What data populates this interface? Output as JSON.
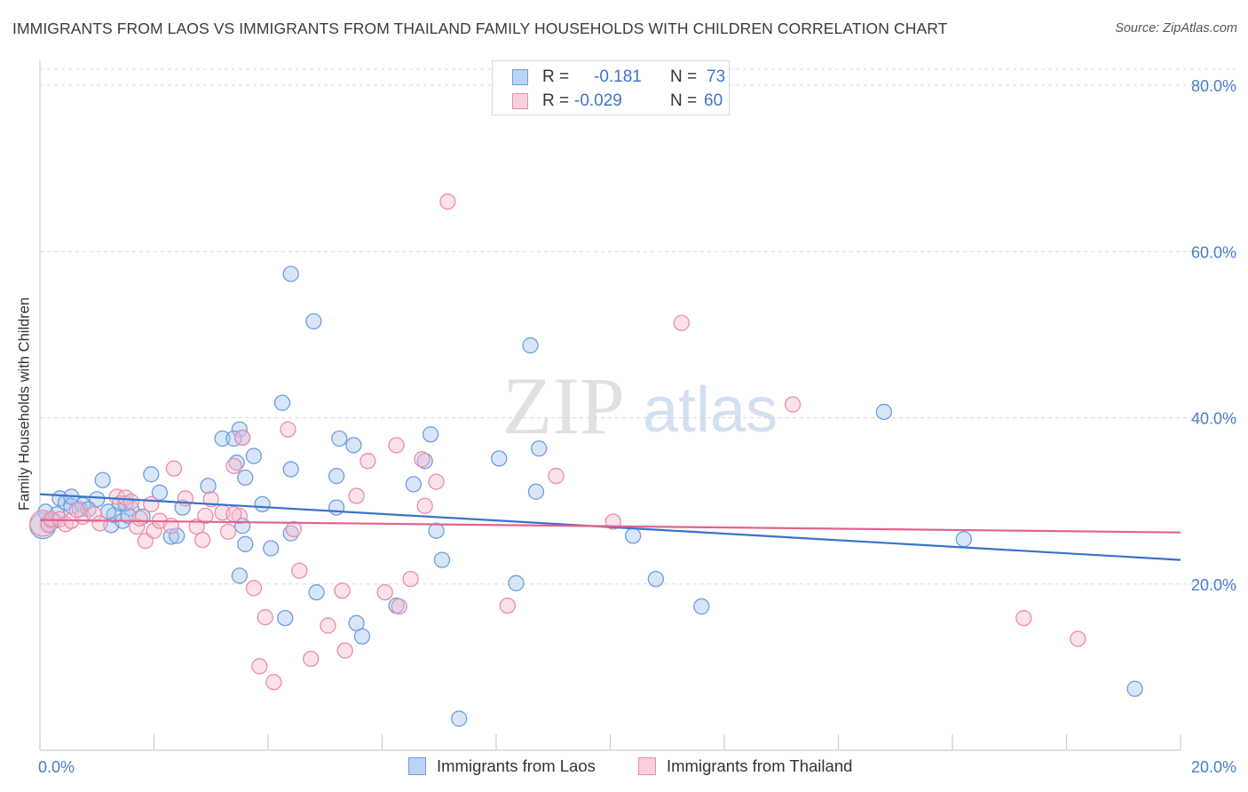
{
  "title": "IMMIGRANTS FROM LAOS VS IMMIGRANTS FROM THAILAND FAMILY HOUSEHOLDS WITH CHILDREN CORRELATION CHART",
  "source": "Source: ZipAtlas.com",
  "watermark": {
    "zip": "ZIP",
    "atlas": "atlas"
  },
  "legend": {
    "rows": [
      {
        "r_label": "R =",
        "r_value": "-0.181",
        "n_label": "N =",
        "n_value": "73"
      },
      {
        "r_label": "R =",
        "r_value": "-0.029",
        "n_label": "N =",
        "n_value": "60"
      }
    ]
  },
  "colors": {
    "laos_fill": "#a9c8ef",
    "laos_stroke": "#6d9ee0",
    "laos_line": "#3a72c9",
    "thai_fill": "#f6bfd1",
    "thai_stroke": "#e98cab",
    "thai_line": "#e0648e",
    "tick_text": "#4a7cc9",
    "grid": "#d9d9d9"
  },
  "chart_data": {
    "type": "scatter",
    "title": "IMMIGRANTS FROM LAOS VS IMMIGRANTS FROM THAILAND FAMILY HOUSEHOLDS WITH CHILDREN CORRELATION CHART",
    "xlabel": "",
    "ylabel": "Family Households with Children",
    "xlim": [
      0,
      20
    ],
    "ylim": [
      0,
      80
    ],
    "x_tick_labels": [
      "0.0%",
      "20.0%"
    ],
    "y_ticks": [
      20,
      40,
      60,
      80
    ],
    "y_tick_labels": [
      "20.0%",
      "40.0%",
      "60.0%",
      "80.0%"
    ],
    "grid": true,
    "legend_position": "top-center",
    "series": [
      {
        "name": "Immigrants from Laos",
        "R": -0.181,
        "N": 73,
        "trend": {
          "x": [
            0,
            20
          ],
          "y": [
            30.8,
            22.9
          ]
        },
        "points": [
          [
            0.05,
            27.0,
            1.7
          ],
          [
            0.1,
            28.7,
            1
          ],
          [
            0.15,
            27.2,
            1
          ],
          [
            0.2,
            27.6,
            1
          ],
          [
            0.25,
            27.6,
            1
          ],
          [
            0.3,
            28.4,
            1
          ],
          [
            0.35,
            30.3,
            1
          ],
          [
            0.45,
            29.8,
            1
          ],
          [
            0.55,
            29.4,
            1
          ],
          [
            0.7,
            29.0,
            1
          ],
          [
            0.75,
            29.5,
            1
          ],
          [
            1.0,
            30.2,
            1
          ],
          [
            1.1,
            32.5,
            1
          ],
          [
            1.25,
            27.1,
            1
          ],
          [
            1.6,
            29.1,
            1
          ],
          [
            1.95,
            33.2,
            1
          ],
          [
            2.1,
            31.0,
            1
          ],
          [
            3.45,
            34.6,
            1
          ],
          [
            3.6,
            32.8,
            1
          ],
          [
            3.75,
            35.4,
            1
          ],
          [
            0.55,
            30.5,
            1
          ],
          [
            1.3,
            28.3,
            1
          ],
          [
            1.45,
            27.6,
            1
          ],
          [
            1.55,
            28.2,
            1
          ],
          [
            2.3,
            25.7,
            1
          ],
          [
            0.85,
            29.0,
            1
          ],
          [
            1.2,
            28.7,
            1
          ],
          [
            1.4,
            29.7,
            1
          ],
          [
            1.5,
            29.7,
            1
          ],
          [
            1.8,
            28.1,
            1
          ],
          [
            2.5,
            29.2,
            1
          ],
          [
            2.95,
            31.8,
            1
          ],
          [
            3.2,
            37.5,
            1
          ],
          [
            3.5,
            38.6,
            1
          ],
          [
            3.55,
            37.6,
            1
          ],
          [
            3.4,
            37.5,
            1
          ],
          [
            3.55,
            27.0,
            1
          ],
          [
            3.6,
            24.8,
            1
          ],
          [
            3.9,
            29.6,
            1
          ],
          [
            4.05,
            24.3,
            1
          ],
          [
            4.4,
            33.8,
            1
          ],
          [
            4.4,
            26.1,
            1
          ],
          [
            4.25,
            41.8,
            1
          ],
          [
            4.4,
            57.3,
            1
          ],
          [
            4.8,
            51.6,
            1
          ],
          [
            4.85,
            19.0,
            1
          ],
          [
            5.2,
            29.2,
            1
          ],
          [
            5.25,
            37.5,
            1
          ],
          [
            5.5,
            36.7,
            1
          ],
          [
            5.55,
            15.3,
            1
          ],
          [
            5.65,
            13.7,
            1
          ],
          [
            6.25,
            17.4,
            1
          ],
          [
            6.55,
            32.0,
            1
          ],
          [
            6.75,
            34.8,
            1
          ],
          [
            6.85,
            38.0,
            1
          ],
          [
            6.95,
            26.4,
            1
          ],
          [
            7.05,
            22.9,
            1
          ],
          [
            7.35,
            3.8,
            1
          ],
          [
            8.05,
            35.1,
            1
          ],
          [
            8.35,
            20.1,
            1
          ],
          [
            8.6,
            48.7,
            1
          ],
          [
            8.75,
            36.3,
            1
          ],
          [
            8.7,
            31.1,
            1
          ],
          [
            10.4,
            25.8,
            1
          ],
          [
            10.8,
            20.6,
            1
          ],
          [
            11.6,
            17.3,
            1
          ],
          [
            14.8,
            40.7,
            1
          ],
          [
            16.2,
            25.4,
            1
          ],
          [
            19.2,
            7.4,
            1
          ],
          [
            2.4,
            25.8,
            1
          ],
          [
            3.5,
            21.0,
            1
          ],
          [
            4.3,
            15.9,
            1
          ],
          [
            5.2,
            33.0,
            1
          ]
        ]
      },
      {
        "name": "Immigrants from Thailand",
        "R": -0.029,
        "N": 60,
        "trend": {
          "x": [
            0,
            20
          ],
          "y": [
            27.7,
            26.2
          ]
        },
        "points": [
          [
            0.05,
            27.3,
            1.7
          ],
          [
            0.15,
            27.1,
            1
          ],
          [
            0.2,
            27.8,
            1
          ],
          [
            0.35,
            27.8,
            1
          ],
          [
            0.45,
            27.2,
            1
          ],
          [
            0.55,
            27.6,
            1
          ],
          [
            0.75,
            28.1,
            1
          ],
          [
            0.95,
            28.4,
            1
          ],
          [
            1.05,
            27.3,
            1
          ],
          [
            1.35,
            30.5,
            1
          ],
          [
            1.5,
            30.4,
            1
          ],
          [
            1.6,
            29.9,
            1
          ],
          [
            1.7,
            26.9,
            1
          ],
          [
            1.85,
            25.2,
            1
          ],
          [
            2.0,
            26.4,
            1
          ],
          [
            2.1,
            27.6,
            1
          ],
          [
            2.35,
            33.9,
            1
          ],
          [
            2.55,
            30.3,
            1
          ],
          [
            2.75,
            26.9,
            1
          ],
          [
            2.85,
            25.3,
            1
          ],
          [
            3.0,
            30.2,
            1
          ],
          [
            3.2,
            28.6,
            1
          ],
          [
            3.3,
            26.3,
            1
          ],
          [
            3.5,
            28.2,
            1
          ],
          [
            3.55,
            37.6,
            1
          ],
          [
            3.4,
            34.2,
            1
          ],
          [
            3.75,
            19.5,
            1
          ],
          [
            3.85,
            10.1,
            1
          ],
          [
            3.95,
            16.0,
            1
          ],
          [
            4.1,
            8.2,
            1
          ],
          [
            4.45,
            26.6,
            1
          ],
          [
            4.55,
            21.6,
            1
          ],
          [
            4.35,
            38.6,
            1
          ],
          [
            4.75,
            11.0,
            1
          ],
          [
            5.05,
            15.0,
            1
          ],
          [
            5.3,
            19.2,
            1
          ],
          [
            5.35,
            12.0,
            1
          ],
          [
            5.55,
            30.6,
            1
          ],
          [
            5.75,
            34.8,
            1
          ],
          [
            6.05,
            19.0,
            1
          ],
          [
            6.25,
            36.7,
            1
          ],
          [
            6.3,
            17.3,
            1
          ],
          [
            6.5,
            20.6,
            1
          ],
          [
            6.7,
            35.0,
            1
          ],
          [
            6.75,
            29.4,
            1
          ],
          [
            6.95,
            32.3,
            1
          ],
          [
            7.15,
            66.0,
            1
          ],
          [
            8.2,
            17.4,
            1
          ],
          [
            9.05,
            33.0,
            1
          ],
          [
            10.05,
            27.5,
            1
          ],
          [
            11.25,
            51.4,
            1
          ],
          [
            13.2,
            41.6,
            1
          ],
          [
            17.25,
            15.9,
            1
          ],
          [
            18.2,
            13.4,
            1
          ],
          [
            1.75,
            27.9,
            1
          ],
          [
            2.3,
            27.0,
            1
          ],
          [
            2.9,
            28.2,
            1
          ],
          [
            0.65,
            28.9,
            1
          ],
          [
            1.95,
            29.6,
            1
          ],
          [
            3.4,
            28.4,
            1
          ]
        ]
      }
    ]
  }
}
